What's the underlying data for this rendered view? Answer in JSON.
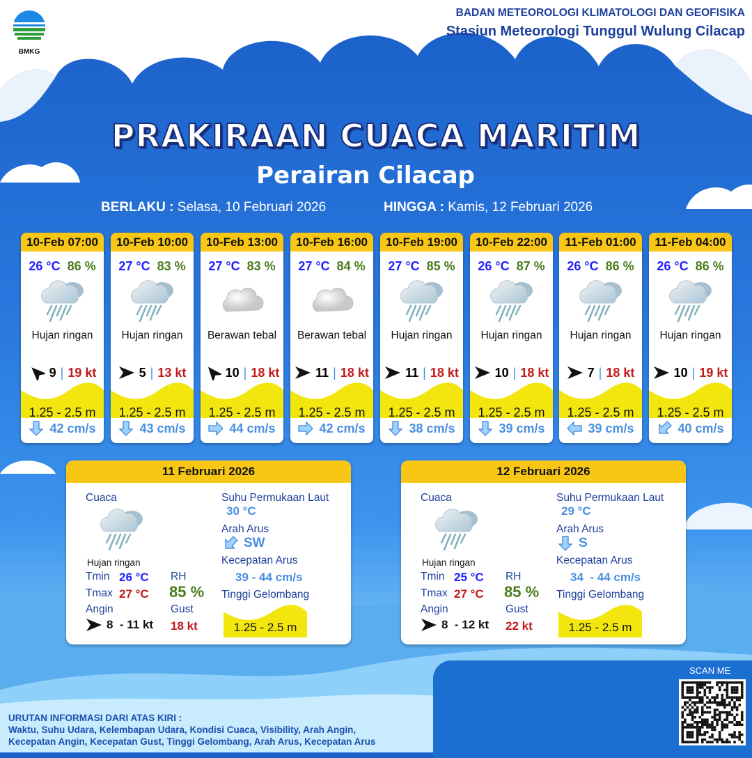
{
  "header": {
    "logo_text": "BMKG",
    "org_line1": "BADAN METEOROLOGI KLIMATOLOGI DAN GEOFISIKA",
    "org_line2": "Stasiun Meteorologi Tunggul Wulung Cilacap",
    "title": "PRAKIRAAN CUACA MARITIM",
    "subtitle": "Perairan Cilacap",
    "valid_from_label": "BERLAKU :",
    "valid_from": "Selasa, 10 Februari 2026",
    "valid_to_label": "HINGGA :",
    "valid_to": "Kamis, 12 Februari 2026"
  },
  "forecasts": [
    {
      "time": "10-Feb 07:00",
      "temp": "26 °C",
      "rh": "86 %",
      "icon": "light-rain",
      "weather": "Hujan ringan",
      "wind_dir_deg": 315,
      "wind": "9",
      "gust": "19 kt",
      "wave": "1.25 - 2.5 m",
      "current_dir": "down",
      "current": "42 cm/s"
    },
    {
      "time": "10-Feb 10:00",
      "temp": "27 °C",
      "rh": "83 %",
      "icon": "light-rain",
      "weather": "Hujan ringan",
      "wind_dir_deg": 90,
      "wind": "5",
      "gust": "13 kt",
      "wave": "1.25 - 2.5 m",
      "current_dir": "down",
      "current": "43 cm/s"
    },
    {
      "time": "10-Feb 13:00",
      "temp": "27 °C",
      "rh": "83 %",
      "icon": "overcast",
      "weather": "Berawan tebal",
      "wind_dir_deg": 320,
      "wind": "10",
      "gust": "18 kt",
      "wave": "1.25 - 2.5 m",
      "current_dir": "right",
      "current": "44 cm/s"
    },
    {
      "time": "10-Feb 16:00",
      "temp": "27 °C",
      "rh": "84 %",
      "icon": "overcast",
      "weather": "Berawan tebal",
      "wind_dir_deg": 90,
      "wind": "11",
      "gust": "18 kt",
      "wave": "1.25 - 2.5 m",
      "current_dir": "right",
      "current": "42 cm/s"
    },
    {
      "time": "10-Feb 19:00",
      "temp": "27 °C",
      "rh": "85 %",
      "icon": "light-rain",
      "weather": "Hujan ringan",
      "wind_dir_deg": 90,
      "wind": "11",
      "gust": "18 kt",
      "wave": "1.25 - 2.5 m",
      "current_dir": "down",
      "current": "38 cm/s"
    },
    {
      "time": "10-Feb 22:00",
      "temp": "26 °C",
      "rh": "87 %",
      "icon": "light-rain",
      "weather": "Hujan ringan",
      "wind_dir_deg": 90,
      "wind": "10",
      "gust": "18 kt",
      "wave": "1.25 - 2.5 m",
      "current_dir": "down",
      "current": "39 cm/s"
    },
    {
      "time": "11-Feb 01:00",
      "temp": "26 °C",
      "rh": "86 %",
      "icon": "light-rain",
      "weather": "Hujan ringan",
      "wind_dir_deg": 90,
      "wind": "7",
      "gust": "18 kt",
      "wave": "1.25 - 2.5 m",
      "current_dir": "left",
      "current": "39 cm/s"
    },
    {
      "time": "11-Feb 04:00",
      "temp": "26 °C",
      "rh": "86 %",
      "icon": "light-rain",
      "weather": "Hujan ringan",
      "wind_dir_deg": 90,
      "wind": "10",
      "gust": "19 kt",
      "wave": "1.25 - 2.5 m",
      "current_dir": "down-left",
      "current": "40 cm/s"
    }
  ],
  "labels": {
    "cuaca": "Cuaca",
    "sst": "Suhu Permukaan Laut",
    "arah_arus": "Arah Arus",
    "kec_arus": "Kecepatan Arus",
    "tinggi": "Tinggi Gelombang",
    "tmin": "Tmin",
    "tmax": "Tmax",
    "rh": "RH",
    "angin": "Angin",
    "gust": "Gust"
  },
  "daily": [
    {
      "date": "11 Februari 2026",
      "weather": "Hujan ringan",
      "tmin": "26 °C",
      "tmax": "27 °C",
      "rh": "85 %",
      "wind": "8  - 11 kt",
      "gust": "18 kt",
      "sst": "30 °C",
      "current_dir": "SW",
      "current_dir_arrow": "down-left",
      "current": "39 - 44 cm/s",
      "wave": "1.25 - 2.5 m"
    },
    {
      "date": "12 Februari 2026",
      "weather": "Hujan ringan",
      "tmin": "25 °C",
      "tmax": "27 °C",
      "rh": "85 %",
      "wind": "8  - 12 kt",
      "gust": "22 kt",
      "sst": "29 °C",
      "current_dir": "S",
      "current_dir_arrow": "down",
      "current": "34  - 44 cm/s",
      "wave": "1.25 - 2.5 m"
    }
  ],
  "footer": {
    "note_title": "URUTAN INFORMASI DARI ATAS KIRI :",
    "note_line1": "Waktu, Suhu Udara, Kelembapan Udara, Kondisi Cuaca, Visibility, Arah Angin,",
    "note_line2": "Kecepatan Angin, Kecepatan Gust, Tinggi Gelombang, Arah Arus, Kecepatan Arus",
    "scan_label": "SCAN ME"
  },
  "colors": {
    "header_yellow": "#f8c614",
    "wave_yellow": "#f2e60e",
    "temp_blue": "#1f1fff",
    "rh_green": "#4a7d1c",
    "gust_red": "#c01a1a",
    "current_blue": "#4a8fe0",
    "title_navy": "#1c3f9b"
  }
}
